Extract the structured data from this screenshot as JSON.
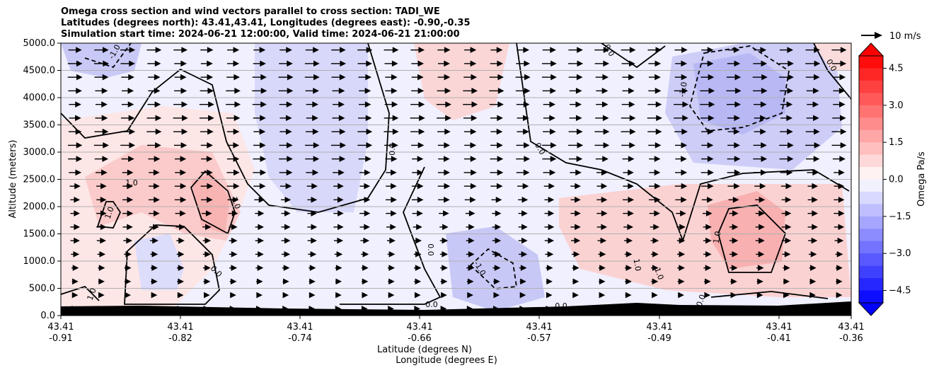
{
  "chart_data": {
    "type": "contour-cross-section",
    "title": [
      "Omega cross section and wind vectors parallel to cross section: TADI_WE",
      "Latitudes (degrees north): 43.41,43.41, Longitudes (degrees east): -0.90,-0.35",
      "Simulation start time: 2024-06-21 12:00:00, Valid time: 2024-06-21 21:00:00"
    ],
    "ylabel": "Altitude (meters)",
    "xlabel_1": "Latitude (degrees N)",
    "xlabel_2": "Longitude (degrees E)",
    "ylim": [
      0,
      5000
    ],
    "y_ticks": [
      "0.0",
      "500.0",
      "1000.0",
      "1500.0",
      "2000.0",
      "2500.0",
      "3000.0",
      "3500.0",
      "4000.0",
      "4500.0",
      "5000.0"
    ],
    "x_ticks": [
      {
        "lat": "43.41",
        "lon": "-0.91"
      },
      {
        "lat": "43.41",
        "lon": "-0.82"
      },
      {
        "lat": "43.41",
        "lon": "-0.74"
      },
      {
        "lat": "43.41",
        "lon": "-0.66"
      },
      {
        "lat": "43.41",
        "lon": "-0.57"
      },
      {
        "lat": "43.41",
        "lon": "-0.49"
      },
      {
        "lat": "43.41",
        "lon": "-0.41"
      },
      {
        "lat": "43.41",
        "lon": "-0.36"
      }
    ],
    "colorbar": {
      "label": "Omega Pa/s",
      "vmin": -5.0,
      "vmax": 5.0,
      "ticks": [
        "4.5",
        "3.0",
        "1.5",
        "0.0",
        "−1.5",
        "−3.0",
        "−4.5"
      ],
      "tick_values": [
        4.5,
        3.0,
        1.5,
        0.0,
        -1.5,
        -3.0,
        -4.5
      ],
      "colormap": "bwr",
      "extend": "both"
    },
    "quiver_key": {
      "label": "10 m/s"
    },
    "contour_labels": [
      {
        "text": "-1.0"
      },
      {
        "text": "1.0"
      },
      {
        "text": "1.0"
      },
      {
        "text": "1.0"
      },
      {
        "text": "0.0"
      },
      {
        "text": "0.0"
      },
      {
        "text": "1.0"
      },
      {
        "text": "0.0"
      },
      {
        "text": "-1.0"
      },
      {
        "text": "0.0"
      },
      {
        "text": "0.0"
      },
      {
        "text": "0.0"
      },
      {
        "text": "-1.0"
      },
      {
        "text": "0.0"
      },
      {
        "text": "1.0"
      },
      {
        "text": "1.0"
      },
      {
        "text": "1.0"
      },
      {
        "text": "0.0"
      },
      {
        "text": "0.0"
      }
    ],
    "omega_regions": [
      {
        "sign": "negative",
        "value": -1.2,
        "location": "top-left corner"
      },
      {
        "sign": "negative",
        "value": -0.9,
        "location": "upper centre-left"
      },
      {
        "sign": "negative",
        "value": -2.2,
        "location": "upper right"
      },
      {
        "sign": "negative",
        "value": -2.0,
        "location": "lower centre"
      },
      {
        "sign": "negative",
        "value": -0.7,
        "location": "lower left"
      },
      {
        "sign": "positive",
        "value": 1.3,
        "location": "left mid-level"
      },
      {
        "sign": "positive",
        "value": 2.0,
        "location": "lower right"
      },
      {
        "sign": "positive",
        "value": 0.8,
        "location": "upper centre"
      }
    ],
    "grid": "horizontal",
    "terrain": "black filled profile along bottom"
  }
}
